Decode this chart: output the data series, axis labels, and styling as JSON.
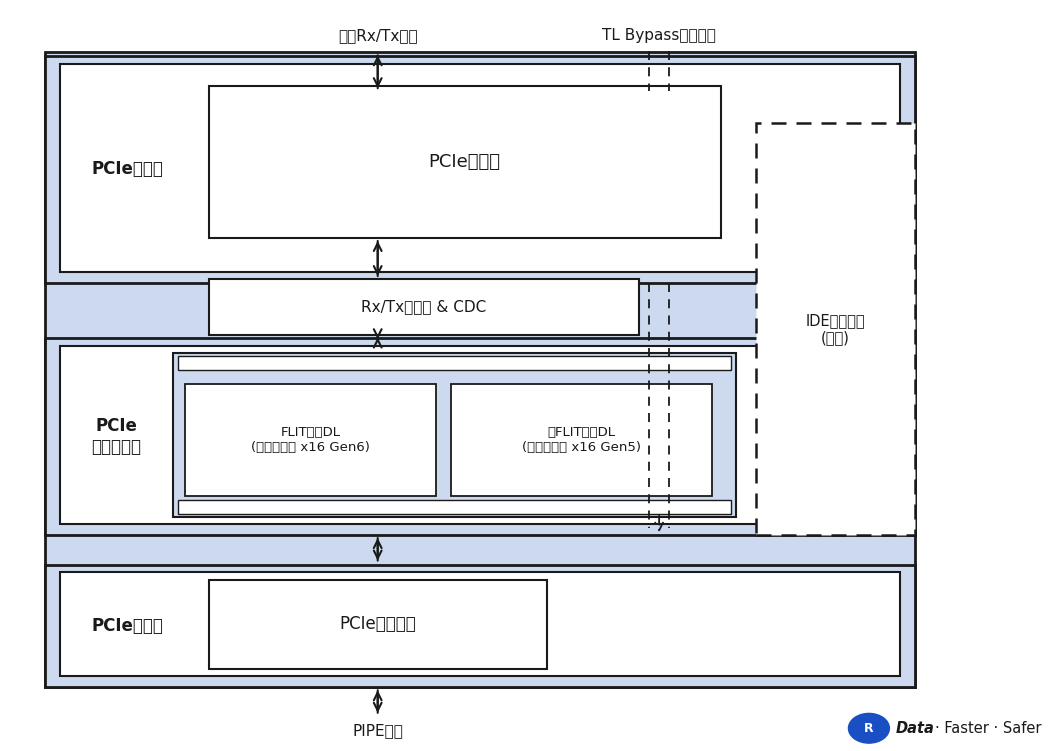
{
  "bg_color": "#ffffff",
  "light_blue": "#ccd9ee",
  "white": "#ffffff",
  "dark": "#1a1a1a",
  "text_dark": "#1a1a1a",
  "tl_label": "PCIe事务层",
  "tl_inner_label": "PCIe事务层",
  "dl_label": "PCIe\n数据链路层",
  "flit_label": "FLIT模式DL\n(最高可支持 x16 Gen6)",
  "nonflit_label": "非FLIT模式DL\n(最高可支持 x16 Gen5)",
  "phy_label": "PCIe物理层",
  "phy_inner_label": "PCIe逻辑子层",
  "cdc_label": "Rx/Tx缓冲器 & CDC",
  "ide_label": "IDE安全引擎\n(可选)",
  "top_label_rx": "高效Rx/Tx接口",
  "top_label_tl": "TL Bypass（可选）",
  "bottom_label": "PIPE接口",
  "rambus_circle_color": "#1a4fc4",
  "rambus_r": "R",
  "rambus_data": "Data",
  "rambus_rest": "· Faster · Safer"
}
